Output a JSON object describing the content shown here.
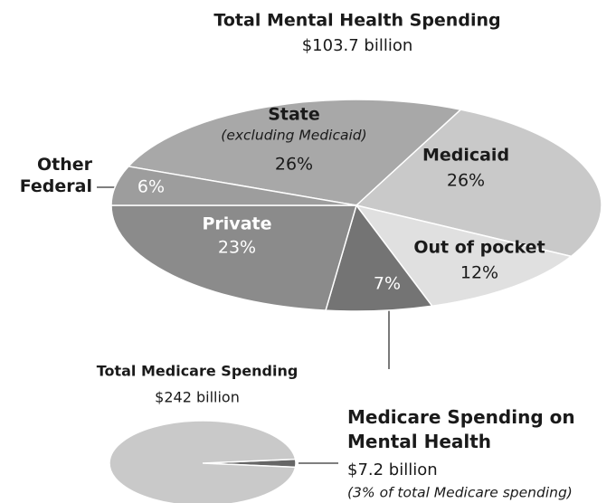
{
  "chart_data": [
    {
      "type": "pie",
      "title": "Total Mental Health Spending",
      "subtitle": "$103.7 billion",
      "categories": [
        "State",
        "Medicaid",
        "Out of pocket",
        null,
        "Private",
        "Other Federal"
      ],
      "category_notes": [
        "(excluding Medicaid)",
        null,
        null,
        null,
        null,
        null
      ],
      "values": [
        26,
        26,
        12,
        7,
        23,
        6
      ],
      "value_labels": [
        "26%",
        "26%",
        "12%",
        "7%",
        "23%",
        "6%"
      ],
      "colors": [
        "#a8a8a8",
        "#c9c9c9",
        "#e0e0e0",
        "#747474",
        "#8b8b8b",
        "#9d9d9d"
      ]
    },
    {
      "type": "pie",
      "title": "Total Medicare Spending",
      "subtitle": "$242 billion",
      "categories": [
        null,
        null
      ],
      "values": [
        3,
        97
      ],
      "colors": [
        "#666666",
        "#c9c9c9"
      ],
      "annotation": {
        "title": "Medicare Spending on Mental Health",
        "value": "$7.2 billion",
        "note": "(3% of total Medicare spending)"
      }
    }
  ]
}
